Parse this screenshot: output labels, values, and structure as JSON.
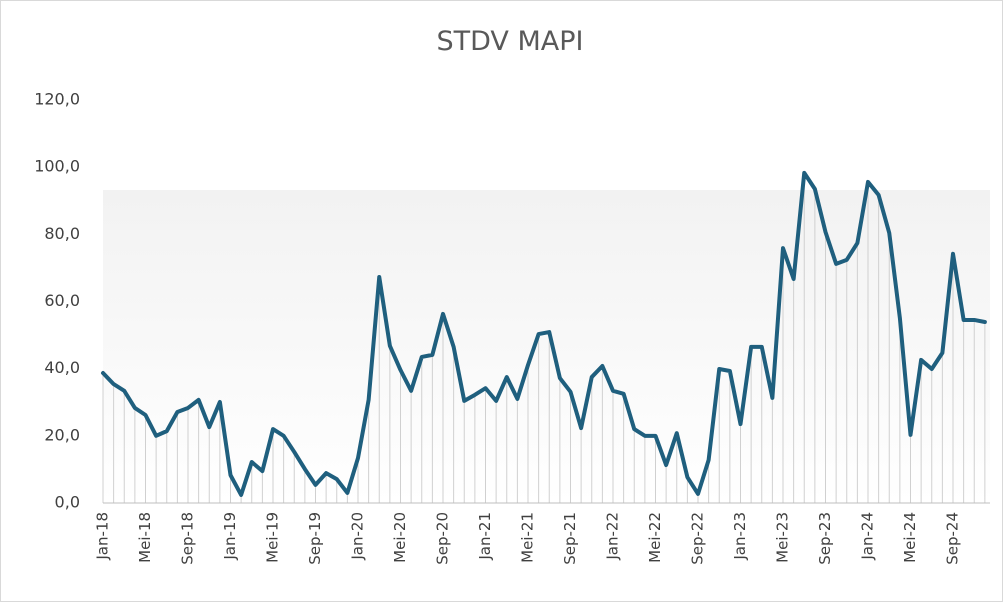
{
  "chart_data": {
    "type": "line",
    "title": "STDV MAPI",
    "categories": [
      "Jan-18",
      null,
      null,
      null,
      "Mei-18",
      null,
      null,
      null,
      "Sep-18",
      null,
      null,
      null,
      "Jan-19",
      null,
      null,
      null,
      "Mei-19",
      null,
      null,
      null,
      "Sep-19",
      null,
      null,
      null,
      "Jan-20",
      null,
      null,
      null,
      "Mei-20",
      null,
      null,
      null,
      "Sep-20",
      null,
      null,
      null,
      "Jan-21",
      null,
      null,
      null,
      "Mei-21",
      null,
      null,
      null,
      "Sep-21",
      null,
      null,
      null,
      "Jan-22",
      null,
      null,
      null,
      "Mei-22",
      null,
      null,
      null,
      "Sep-22",
      null,
      null,
      null,
      "Jan-23",
      null,
      null,
      null,
      "Mei-23",
      null,
      null,
      null,
      "Sep-23",
      null,
      null,
      null,
      "Jan-24",
      null,
      null,
      null,
      "Mei-24",
      null,
      null,
      null,
      "Sep-24",
      null,
      null,
      null
    ],
    "values": [
      38.7,
      35.4,
      33.4,
      28.3,
      26.2,
      20.0,
      21.4,
      27.1,
      28.3,
      30.7,
      22.6,
      30.1,
      8.3,
      2.4,
      12.2,
      9.5,
      22.0,
      20.0,
      15.2,
      10.1,
      5.4,
      8.9,
      7.1,
      3.0,
      13.4,
      30.7,
      67.3,
      46.8,
      39.6,
      33.4,
      43.5,
      44.1,
      56.3,
      46.5,
      30.4,
      32.2,
      34.2,
      30.4,
      37.5,
      31.0,
      41.1,
      50.3,
      50.9,
      37.2,
      33.1,
      22.3,
      37.5,
      40.8,
      33.4,
      32.5,
      22.0,
      20.0,
      20.0,
      11.3,
      20.8,
      7.7,
      2.7,
      12.8,
      39.9,
      39.3,
      23.5,
      46.5,
      46.5,
      31.3,
      75.9,
      66.7,
      98.3,
      93.5,
      80.7,
      71.2,
      72.4,
      77.4,
      95.6,
      91.7,
      80.4,
      55.1,
      20.3,
      42.6,
      39.9,
      44.7,
      74.2,
      54.5,
      54.5,
      53.9
    ],
    "color": "#1f5f7e",
    "drop_line_color": "#d0d0d0",
    "ylim": [
      0,
      120
    ],
    "yticks": [
      {
        "value": 0,
        "label": "0,0"
      },
      {
        "value": 20,
        "label": "20,0"
      },
      {
        "value": 40,
        "label": "40,0"
      },
      {
        "value": 60,
        "label": "60,0"
      },
      {
        "value": 80,
        "label": "80,0"
      },
      {
        "value": 100,
        "label": "100,0"
      },
      {
        "value": 120,
        "label": "120,0"
      }
    ],
    "grid": false
  }
}
